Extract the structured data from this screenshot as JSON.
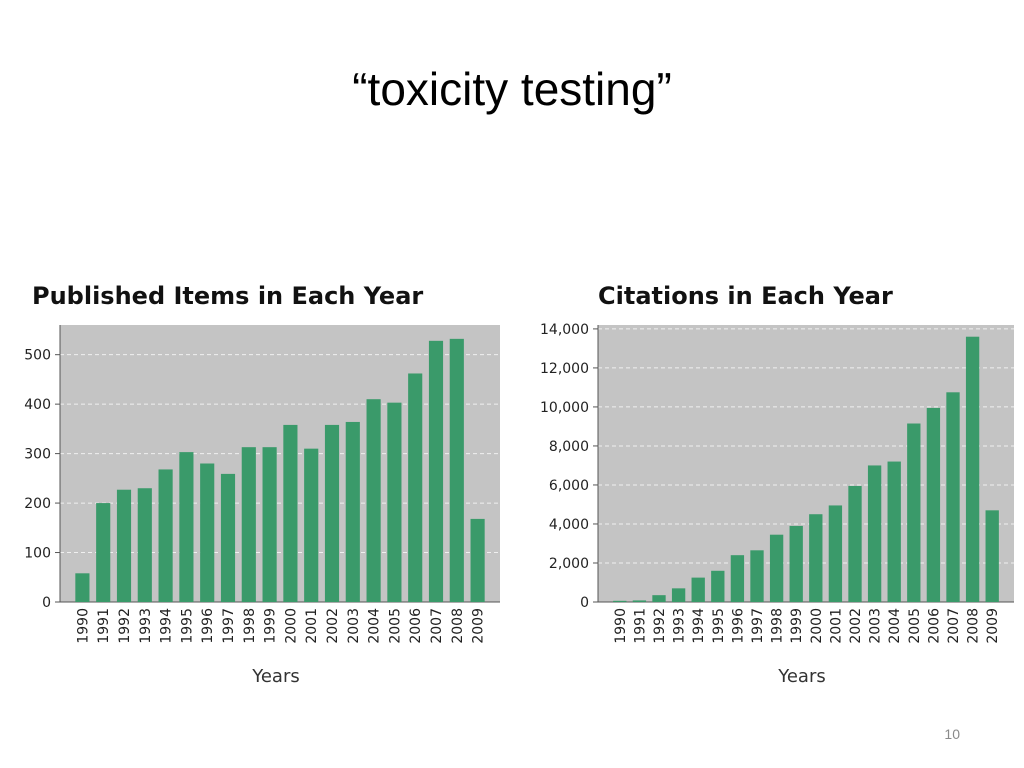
{
  "slide": {
    "title": "“toxicity testing”",
    "page_number": "10"
  },
  "colors": {
    "bar": "#3a9a6a",
    "plot_background": "#c4c4c4",
    "gridline": "#f0f0f0"
  },
  "chart_data": [
    {
      "type": "bar",
      "title": "Published Items in Each Year",
      "xlabel": "Years",
      "ylabel": "",
      "categories": [
        "1990",
        "1991",
        "1992",
        "1993",
        "1994",
        "1995",
        "1996",
        "1997",
        "1998",
        "1999",
        "2000",
        "2001",
        "2002",
        "2003",
        "2004",
        "2005",
        "2006",
        "2007",
        "2008",
        "2009"
      ],
      "values": [
        58,
        200,
        227,
        230,
        268,
        303,
        280,
        259,
        313,
        313,
        358,
        310,
        358,
        364,
        410,
        403,
        462,
        528,
        532,
        168
      ],
      "ylim": [
        0,
        560
      ],
      "yticks": [
        0,
        100,
        200,
        300,
        400,
        500
      ],
      "ytick_labels": [
        "0",
        "100",
        "200",
        "300",
        "400",
        "500"
      ],
      "grid": true
    },
    {
      "type": "bar",
      "title": "Citations in Each Year",
      "xlabel": "Years",
      "ylabel": "",
      "categories": [
        "1990",
        "1991",
        "1992",
        "1993",
        "1994",
        "1995",
        "1996",
        "1997",
        "1998",
        "1999",
        "2000",
        "2001",
        "2002",
        "2003",
        "2004",
        "2005",
        "2006",
        "2007",
        "2008",
        "2009"
      ],
      "values": [
        60,
        80,
        350,
        700,
        1250,
        1600,
        2400,
        2650,
        3450,
        3900,
        4500,
        4950,
        5950,
        7000,
        7200,
        9150,
        9950,
        10750,
        13600,
        4700
      ],
      "ylim": [
        0,
        14200
      ],
      "yticks": [
        0,
        2000,
        4000,
        6000,
        8000,
        10000,
        12000,
        14000
      ],
      "ytick_labels": [
        "0",
        "2,000",
        "4,000",
        "6,000",
        "8,000",
        "10,000",
        "12,000",
        "14,000"
      ],
      "grid": true
    }
  ]
}
